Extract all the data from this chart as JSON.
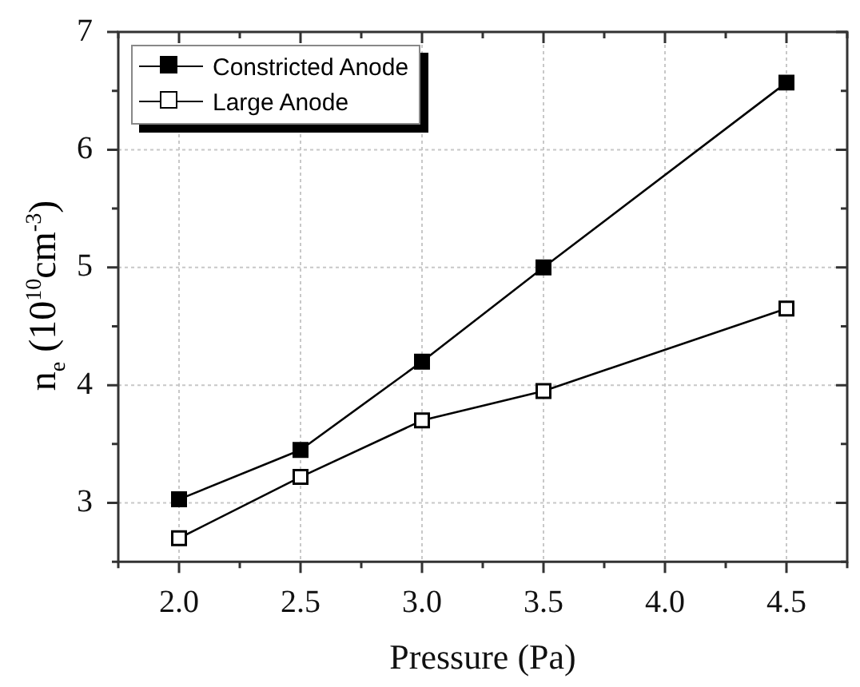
{
  "chart_data": {
    "type": "line",
    "xlabel": "Pressure (Pa)",
    "ylabel": "n$_{e}$ (10$^{10}$cm$^{-3}$)",
    "x": [
      2.0,
      2.5,
      3.0,
      3.5,
      4.5
    ],
    "series": [
      {
        "name": "Constricted Anode",
        "color": "#000000",
        "values": [
          3.03,
          3.45,
          4.2,
          5.0,
          6.57
        ]
      },
      {
        "name": "Large Anode",
        "color": "#000000",
        "values": [
          2.7,
          3.22,
          3.7,
          3.95,
          4.65
        ]
      }
    ],
    "xlim": [
      1.75,
      4.75
    ],
    "xticks": [
      {
        "value": 1.75,
        "label": null
      },
      {
        "value": 2.0,
        "label": "2.0"
      },
      {
        "value": 2.25,
        "label": null
      },
      {
        "value": 2.5,
        "label": "2.5"
      },
      {
        "value": 2.75,
        "label": null
      },
      {
        "value": 3.0,
        "label": "3.0"
      },
      {
        "value": 3.25,
        "label": null
      },
      {
        "value": 3.5,
        "label": "3.5"
      },
      {
        "value": 3.75,
        "label": null
      },
      {
        "value": 4.0,
        "label": "4.0"
      },
      {
        "value": 4.25,
        "label": null
      },
      {
        "value": 4.5,
        "label": "4.5"
      },
      {
        "value": 4.75,
        "label": null
      }
    ],
    "ylim": [
      2.5,
      7
    ],
    "yticks": [
      {
        "value": 2.5,
        "label": null
      },
      3,
      {
        "value": 3.5,
        "label": null
      },
      4,
      {
        "value": 4.5,
        "label": null
      },
      5,
      {
        "value": 5.5,
        "label": null
      },
      6,
      {
        "value": 6.5,
        "label": null
      },
      7
    ],
    "grid": true,
    "legend": "top left",
    "marker": "square",
    "line_style": "solid"
  }
}
